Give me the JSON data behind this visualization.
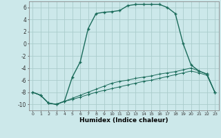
{
  "xlabel": "Humidex (Indice chaleur)",
  "ylabel": "",
  "bg_color": "#cce8ea",
  "grid_color": "#aacccc",
  "line_color": "#1a6b5a",
  "xlim": [
    -0.5,
    23.5
  ],
  "ylim": [
    -11,
    7
  ],
  "xticks": [
    0,
    1,
    2,
    3,
    4,
    5,
    6,
    7,
    8,
    9,
    10,
    11,
    12,
    13,
    14,
    15,
    16,
    17,
    18,
    19,
    20,
    21,
    22,
    23
  ],
  "yticks": [
    -10,
    -8,
    -6,
    -4,
    -2,
    0,
    2,
    4,
    6
  ],
  "series1_x": [
    0,
    1,
    2,
    3,
    4,
    5,
    6,
    7,
    8,
    9,
    10,
    11,
    12,
    13,
    14,
    15,
    16,
    17,
    18,
    19,
    20,
    21,
    22,
    23
  ],
  "series1_y": [
    -8,
    -8.5,
    -9.8,
    -10,
    -9.5,
    -5.5,
    -3.0,
    2.5,
    5.0,
    5.2,
    5.3,
    5.5,
    6.3,
    6.5,
    6.5,
    6.5,
    6.5,
    6.0,
    5.0,
    0.0,
    -3.5,
    -4.5,
    -5.0,
    -8.0
  ],
  "series2_x": [
    0,
    1,
    2,
    3,
    4,
    5,
    6,
    7,
    8,
    9,
    10,
    11,
    12,
    13,
    14,
    15,
    16,
    17,
    18,
    19,
    20,
    21,
    22,
    23
  ],
  "series2_y": [
    -8,
    -8.5,
    -9.8,
    -10.0,
    -9.5,
    -9.0,
    -8.5,
    -8.0,
    -7.5,
    -7.0,
    -6.5,
    -6.2,
    -6.0,
    -5.7,
    -5.5,
    -5.3,
    -5.0,
    -4.8,
    -4.6,
    -4.3,
    -4.0,
    -4.5,
    -5.0,
    -8.0
  ],
  "series3_x": [
    0,
    1,
    2,
    3,
    4,
    5,
    6,
    7,
    8,
    9,
    10,
    11,
    12,
    13,
    14,
    15,
    16,
    17,
    18,
    19,
    20,
    21,
    22,
    23
  ],
  "series3_y": [
    -8,
    -8.5,
    -9.8,
    -10.0,
    -9.5,
    -9.2,
    -8.8,
    -8.4,
    -8.0,
    -7.7,
    -7.4,
    -7.1,
    -6.8,
    -6.5,
    -6.2,
    -6.0,
    -5.7,
    -5.4,
    -5.1,
    -4.8,
    -4.5,
    -4.8,
    -5.2,
    -8.0
  ]
}
